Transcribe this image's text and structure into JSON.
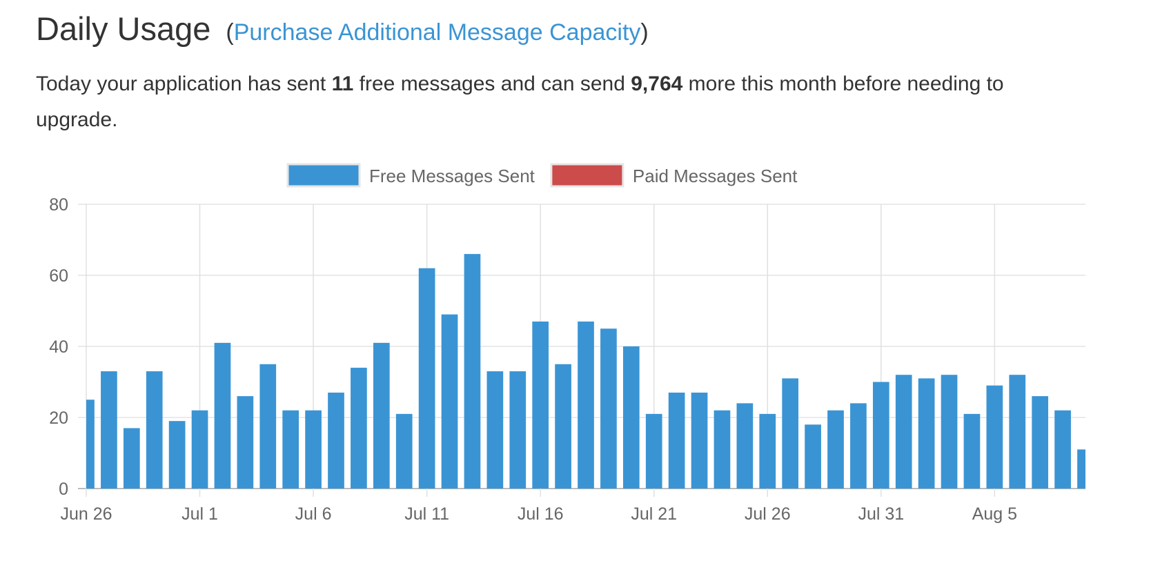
{
  "header": {
    "title": "Daily Usage",
    "link_open": "(",
    "link_label": "Purchase Additional Message Capacity",
    "link_close": ")"
  },
  "summary": {
    "pre": "Today your application has sent ",
    "sent_today": "11",
    "mid": " free messages and can send ",
    "remaining": "9,764",
    "post": " more this month before needing to upgrade."
  },
  "colors": {
    "free": "#3a94d4",
    "paid": "#cc4b4b",
    "link": "#3a94d4"
  },
  "chart_data": {
    "type": "bar",
    "title": "",
    "xlabel": "",
    "ylabel": "",
    "ylim": [
      0,
      80
    ],
    "yticks": [
      0,
      20,
      40,
      60,
      80
    ],
    "grid": true,
    "legend": "top",
    "x_tick_labels": [
      "Jun 26",
      "Jul 1",
      "Jul 6",
      "Jul 11",
      "Jul 16",
      "Jul 21",
      "Jul 26",
      "Jul 31",
      "Aug 5"
    ],
    "categories": [
      "Jun 26",
      "Jun 27",
      "Jun 28",
      "Jun 29",
      "Jun 30",
      "Jul 1",
      "Jul 2",
      "Jul 3",
      "Jul 4",
      "Jul 5",
      "Jul 6",
      "Jul 7",
      "Jul 8",
      "Jul 9",
      "Jul 10",
      "Jul 11",
      "Jul 12",
      "Jul 13",
      "Jul 14",
      "Jul 15",
      "Jul 16",
      "Jul 17",
      "Jul 18",
      "Jul 19",
      "Jul 20",
      "Jul 21",
      "Jul 22",
      "Jul 23",
      "Jul 24",
      "Jul 25",
      "Jul 26",
      "Jul 27",
      "Jul 28",
      "Jul 29",
      "Jul 30",
      "Jul 31",
      "Aug 1",
      "Aug 2",
      "Aug 3",
      "Aug 4",
      "Aug 5",
      "Aug 6",
      "Aug 7",
      "Aug 8",
      "Aug 9"
    ],
    "series": [
      {
        "name": "Free Messages Sent",
        "color": "#3a94d4",
        "values": [
          25,
          33,
          17,
          33,
          19,
          22,
          41,
          26,
          35,
          22,
          22,
          27,
          34,
          41,
          21,
          62,
          49,
          66,
          33,
          33,
          47,
          35,
          47,
          45,
          40,
          21,
          27,
          27,
          22,
          24,
          21,
          31,
          18,
          22,
          24,
          30,
          32,
          31,
          32,
          21,
          29,
          32,
          26,
          22,
          11
        ]
      },
      {
        "name": "Paid Messages Sent",
        "color": "#cc4b4b",
        "values": [
          0,
          0,
          0,
          0,
          0,
          0,
          0,
          0,
          0,
          0,
          0,
          0,
          0,
          0,
          0,
          0,
          0,
          0,
          0,
          0,
          0,
          0,
          0,
          0,
          0,
          0,
          0,
          0,
          0,
          0,
          0,
          0,
          0,
          0,
          0,
          0,
          0,
          0,
          0,
          0,
          0,
          0,
          0,
          0,
          0
        ]
      }
    ]
  }
}
